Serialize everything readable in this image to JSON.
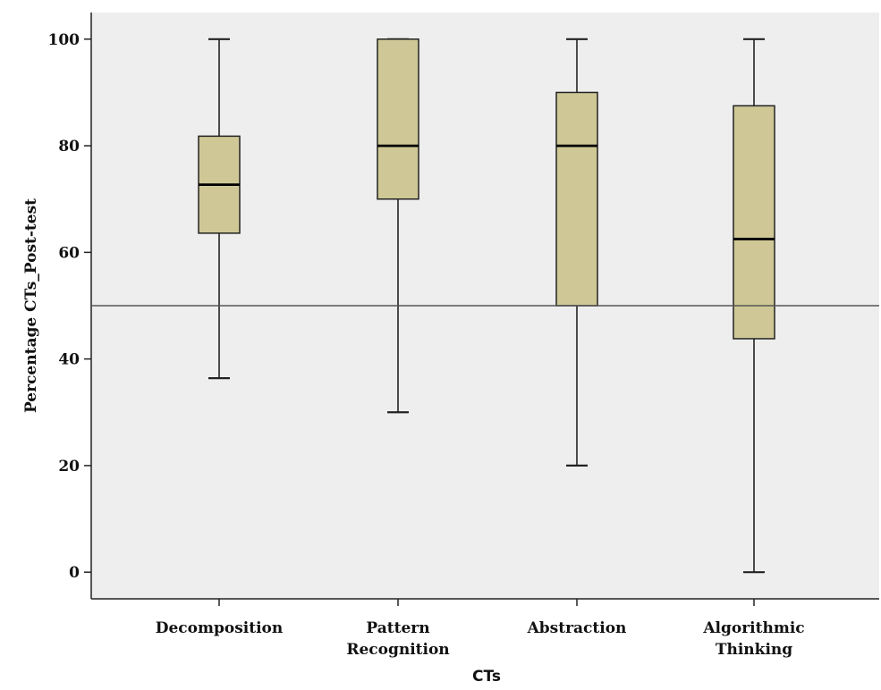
{
  "chart_data": {
    "type": "box",
    "title": "",
    "xlabel": "CTs",
    "ylabel": "Percentage CTs_Post-test",
    "ylim": [
      -5,
      105
    ],
    "yticks": [
      0,
      20,
      40,
      60,
      80,
      100
    ],
    "reference_line": 50,
    "grid": false,
    "colors": {
      "box_fill": "#cfc896",
      "box_stroke": "#222222",
      "plot_bg": "#eeeeee",
      "reference_line": "#555555"
    },
    "categories": [
      {
        "label": [
          "Decomposition"
        ],
        "min": 36.4,
        "q1": 63.6,
        "median": 72.7,
        "q3": 81.8,
        "max": 100
      },
      {
        "label": [
          "Pattern",
          "Recognition"
        ],
        "min": 30,
        "q1": 70,
        "median": 80,
        "q3": 100,
        "max": 100
      },
      {
        "label": [
          "Abstraction"
        ],
        "min": 20,
        "q1": 50,
        "median": 80,
        "q3": 90,
        "max": 100
      },
      {
        "label": [
          "Algorithmic",
          "Thinking"
        ],
        "min": 0,
        "q1": 43.8,
        "median": 62.5,
        "q3": 87.5,
        "max": 100
      }
    ]
  }
}
